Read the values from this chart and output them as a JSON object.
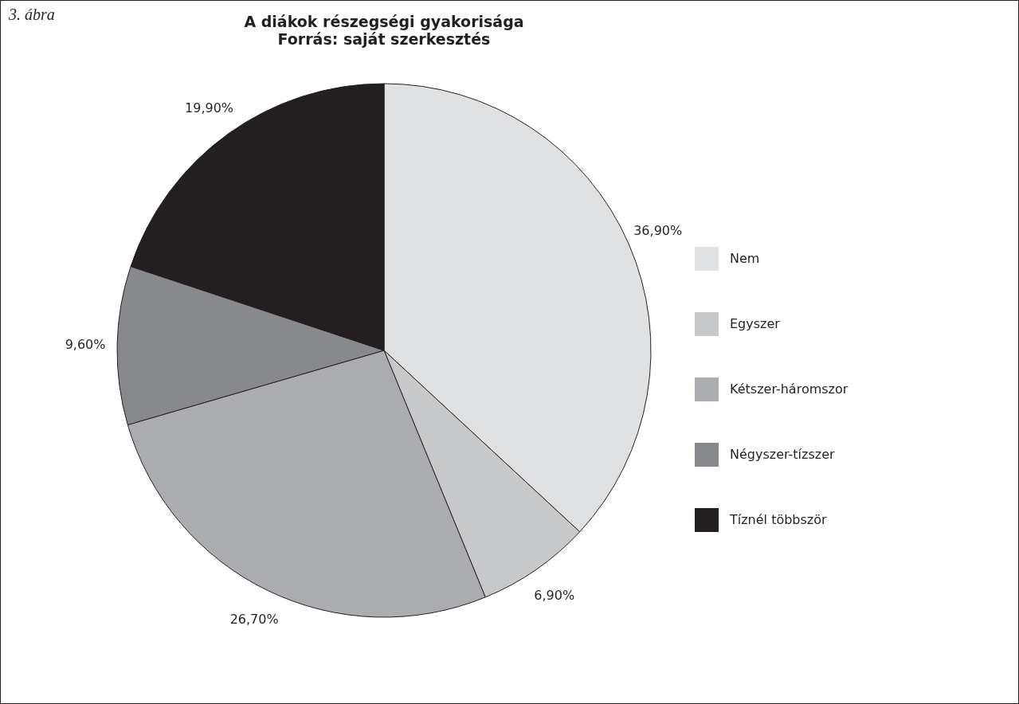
{
  "chart_data": {
    "type": "pie",
    "title": "A diákok részegségi gyakorisága",
    "subtitle": "Forrás: saját szerkesztés",
    "annotations": [
      "3. ábra"
    ],
    "categories": [
      "Nem",
      "Egyszer",
      "Kétszer-háromszor",
      "Négyszer-tízszer",
      "Tíznél  többször"
    ],
    "values": [
      36.9,
      6.9,
      26.7,
      9.6,
      19.9
    ],
    "value_labels": [
      "36,90%",
      "6,90%",
      "26,70%",
      "9,60%",
      "19,90%"
    ],
    "colors": [
      "#e0e1e3",
      "#c8c9cb",
      "#acadb0",
      "#88898d",
      "#231f20"
    ],
    "legend": "right"
  }
}
